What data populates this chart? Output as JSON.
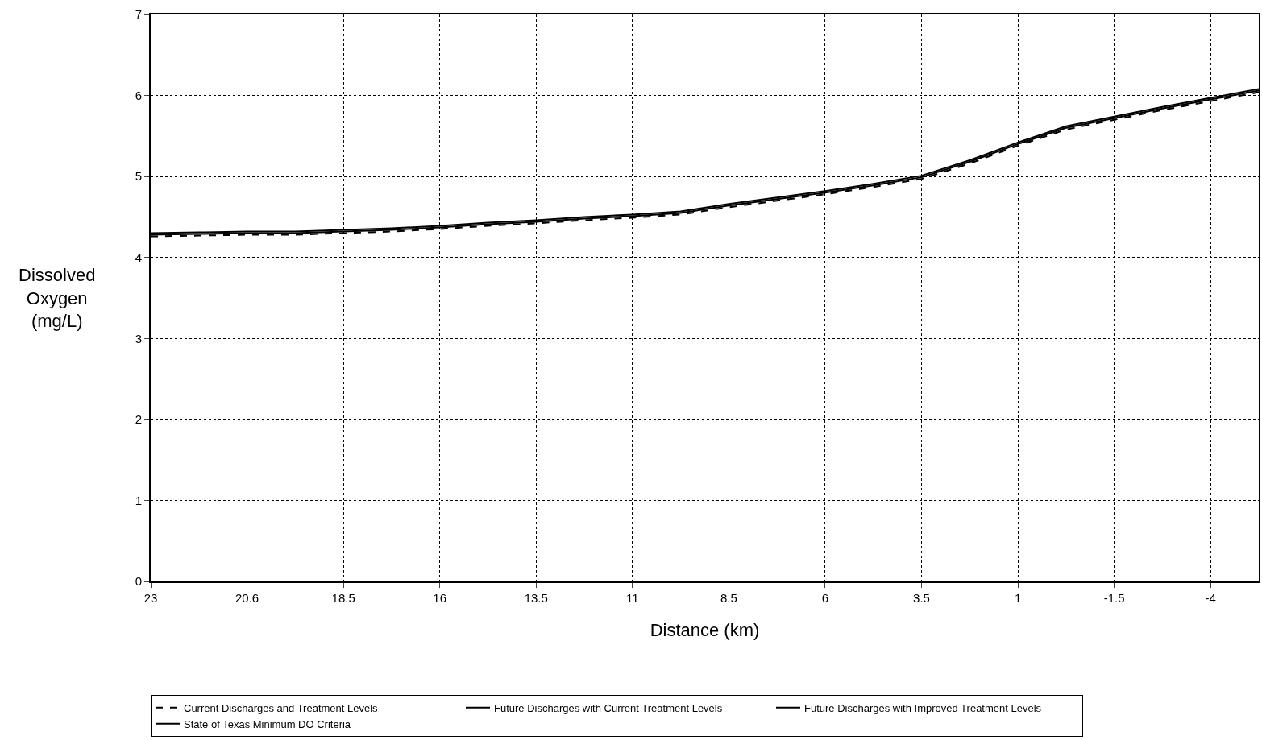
{
  "chart_data": {
    "type": "line",
    "xlabel": "Distance (km)",
    "ylabel": "Dissolved Oxygen (mg/L)",
    "categories": [
      "23",
      null,
      "20.6",
      null,
      "18.5",
      null,
      "16",
      null,
      "13.5",
      null,
      "11",
      null,
      "8.5",
      null,
      "6",
      null,
      "3.5",
      null,
      "1",
      null,
      "-1.5",
      null,
      "-4",
      null
    ],
    "series": [
      {
        "name": "Current Discharges and Treatment Levels",
        "color": "#000000",
        "line_style": "dashed",
        "values": [
          4.26,
          4.27,
          4.28,
          4.28,
          4.3,
          4.32,
          4.35,
          4.39,
          4.42,
          4.46,
          4.49,
          4.53,
          4.62,
          4.7,
          4.78,
          4.87,
          4.97,
          5.16,
          5.38,
          5.58,
          5.7,
          5.82,
          5.93,
          6.04
        ]
      },
      {
        "name": "Future Discharges with Current Treatment Levels",
        "color": "#000000",
        "line_style": "solid",
        "values": [
          4.28,
          4.29,
          4.3,
          4.3,
          4.32,
          4.34,
          4.37,
          4.41,
          4.44,
          4.48,
          4.51,
          4.55,
          4.64,
          4.72,
          4.8,
          4.89,
          4.99,
          5.18,
          5.4,
          5.6,
          5.72,
          5.84,
          5.95,
          6.06
        ]
      },
      {
        "name": "Future Discharges with Improved Treatment Levels",
        "color": "#000000",
        "line_style": "solid",
        "values": [
          4.3,
          4.31,
          4.32,
          4.32,
          4.34,
          4.36,
          4.39,
          4.43,
          4.46,
          4.5,
          4.53,
          4.57,
          4.66,
          4.74,
          4.82,
          4.91,
          5.01,
          5.2,
          5.42,
          5.62,
          5.74,
          5.86,
          5.97,
          6.08
        ]
      },
      {
        "name": "State of Texas Minimum DO Criteria",
        "color": "#000000",
        "line_style": "solid",
        "values": [
          0,
          0,
          0,
          0,
          0,
          0,
          0,
          0,
          0,
          0,
          0,
          0,
          0,
          0,
          0,
          0,
          0,
          0,
          0,
          0,
          0,
          0,
          0,
          0
        ]
      }
    ],
    "ylim": [
      0,
      7
    ],
    "yticks": [
      0,
      1,
      2,
      3,
      4,
      5,
      6,
      7
    ],
    "grid": true,
    "legend": "bottom",
    "marker": "none"
  }
}
